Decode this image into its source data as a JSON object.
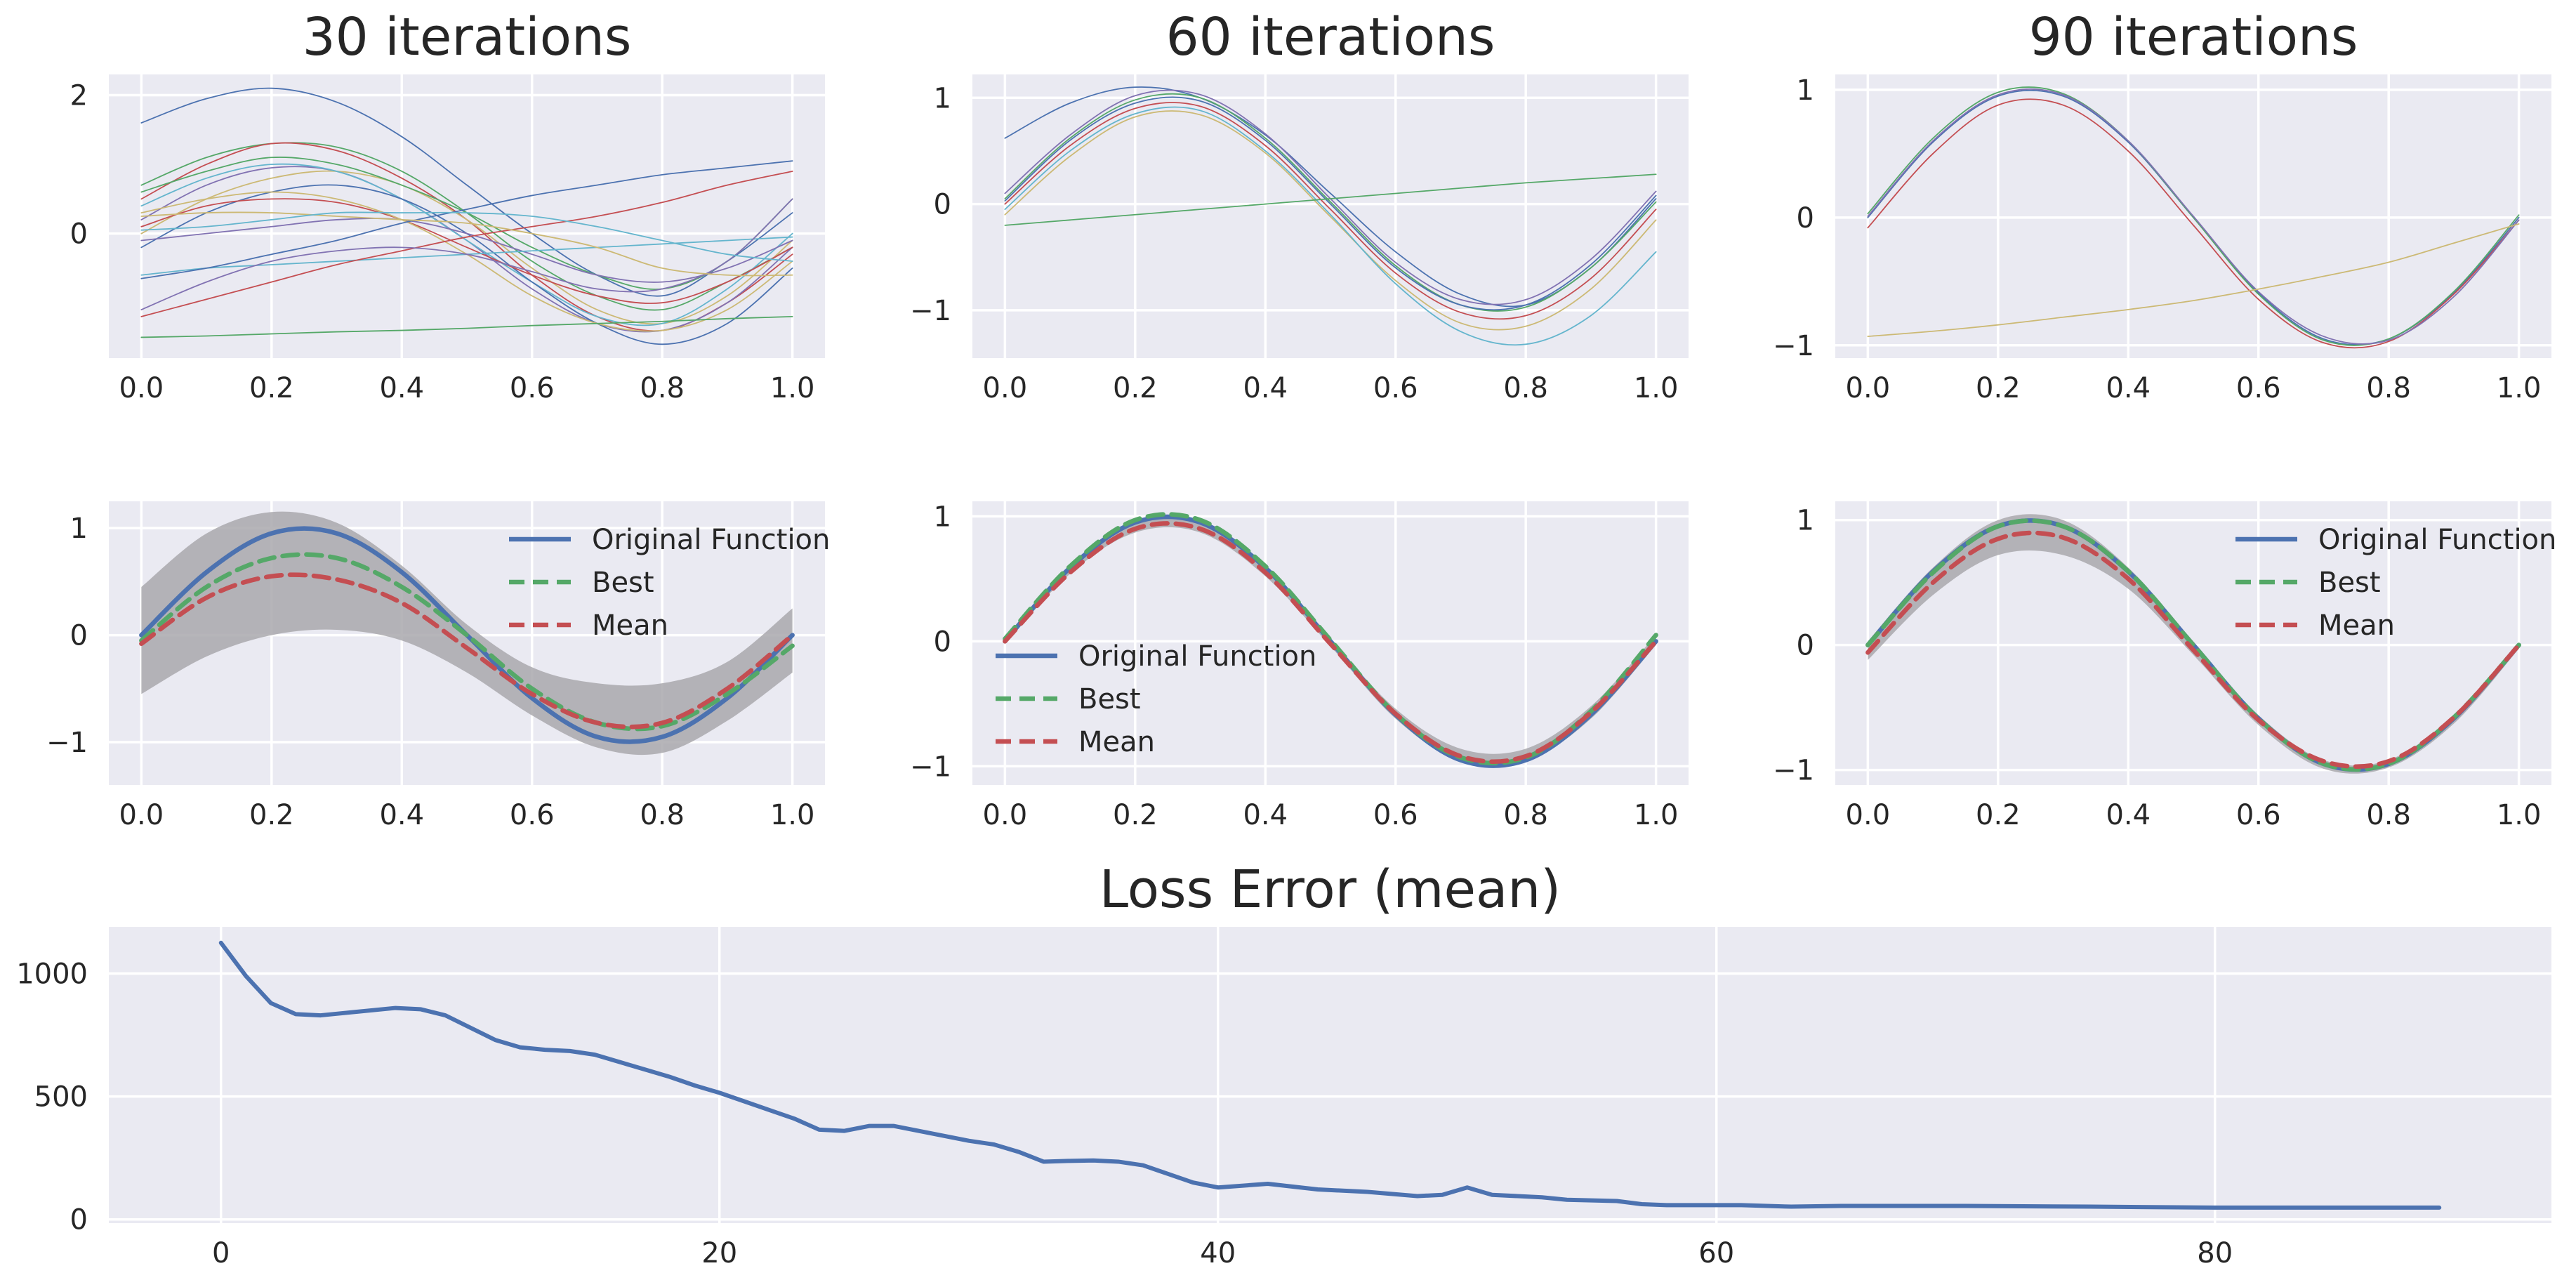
{
  "figure": {
    "background": "#ffffff",
    "panel_color": "#eaeaf2",
    "grid": true
  },
  "colors": {
    "original": "#4c72b0",
    "best": "#55a868",
    "mean": "#c44e52",
    "band": "#a9a8ad",
    "cycle": [
      "#4c72b0",
      "#55a868",
      "#c44e52",
      "#8172b2",
      "#ccb974",
      "#64b5cd"
    ]
  },
  "chart_data": [
    {
      "id": "pop30",
      "type": "line",
      "title": "30 iterations",
      "xlim": [
        -0.05,
        1.05
      ],
      "ylim": [
        -1.8,
        2.3
      ],
      "xticks": [
        "0.0",
        "0.2",
        "0.4",
        "0.6",
        "0.8",
        "1.0"
      ],
      "yticks": [
        "0",
        "2"
      ],
      "x": [
        0,
        0.1,
        0.2,
        0.3,
        0.4,
        0.5,
        0.6,
        0.7,
        0.8,
        0.9,
        1.0
      ],
      "series": [
        {
          "values": [
            1.6,
            1.95,
            2.1,
            1.9,
            1.4,
            0.7,
            0.0,
            -0.6,
            -0.9,
            -0.4,
            0.3
          ]
        },
        {
          "values": [
            0.7,
            1.1,
            1.3,
            1.25,
            0.9,
            0.3,
            -0.4,
            -0.9,
            -1.1,
            -0.7,
            -0.2
          ]
        },
        {
          "values": [
            0.5,
            1.0,
            1.3,
            1.2,
            0.8,
            0.2,
            -0.6,
            -1.2,
            -1.4,
            -1.0,
            -0.3
          ]
        },
        {
          "values": [
            0.2,
            0.7,
            0.95,
            0.9,
            0.5,
            -0.1,
            -0.8,
            -1.3,
            -1.4,
            -1.0,
            -0.2
          ]
        },
        {
          "values": [
            0.0,
            0.5,
            0.8,
            0.9,
            0.7,
            0.2,
            -0.5,
            -1.1,
            -1.3,
            -0.9,
            -0.1
          ]
        },
        {
          "values": [
            0.4,
            0.8,
            1.0,
            0.9,
            0.5,
            -0.1,
            -0.7,
            -1.2,
            -1.3,
            -0.8,
            0.0
          ]
        },
        {
          "values": [
            -0.2,
            0.3,
            0.6,
            0.7,
            0.5,
            0.0,
            -0.7,
            -1.3,
            -1.6,
            -1.3,
            -0.5
          ]
        },
        {
          "values": [
            0.6,
            0.9,
            1.1,
            1.0,
            0.7,
            0.3,
            -0.2,
            -0.6,
            -0.8,
            -0.4,
            0.5
          ]
        },
        {
          "values": [
            0.1,
            0.4,
            0.5,
            0.45,
            0.2,
            -0.2,
            -0.6,
            -0.9,
            -1.0,
            -0.7,
            -0.2
          ]
        },
        {
          "values": [
            -0.1,
            0.0,
            0.1,
            0.2,
            0.2,
            0.0,
            -0.3,
            -0.6,
            -0.7,
            -0.5,
            -0.1
          ]
        },
        {
          "values": [
            0.3,
            0.5,
            0.6,
            0.5,
            0.2,
            -0.3,
            -0.9,
            -1.3,
            -1.4,
            -1.1,
            -0.4
          ]
        },
        {
          "values": [
            -0.6,
            -0.5,
            -0.45,
            -0.4,
            -0.35,
            -0.3,
            -0.25,
            -0.2,
            -0.15,
            -0.1,
            -0.05
          ]
        },
        {
          "values": [
            -0.65,
            -0.5,
            -0.3,
            -0.1,
            0.15,
            0.35,
            0.55,
            0.7,
            0.85,
            0.95,
            1.05
          ]
        },
        {
          "values": [
            -1.5,
            -1.48,
            -1.45,
            -1.42,
            -1.4,
            -1.37,
            -1.33,
            -1.3,
            -1.27,
            -1.23,
            -1.2
          ]
        },
        {
          "values": [
            -1.2,
            -0.95,
            -0.7,
            -0.45,
            -0.25,
            -0.05,
            0.1,
            0.25,
            0.45,
            0.7,
            0.9
          ]
        },
        {
          "values": [
            -1.1,
            -0.7,
            -0.4,
            -0.25,
            -0.2,
            -0.3,
            -0.55,
            -0.8,
            -0.8,
            -0.4,
            0.5
          ]
        },
        {
          "values": [
            0.25,
            0.3,
            0.3,
            0.25,
            0.2,
            0.15,
            0.0,
            -0.2,
            -0.5,
            -0.6,
            -0.6
          ]
        },
        {
          "values": [
            0.05,
            0.1,
            0.2,
            0.3,
            0.3,
            0.3,
            0.25,
            0.1,
            -0.1,
            -0.3,
            -0.4
          ]
        }
      ]
    },
    {
      "id": "pop60",
      "type": "line",
      "title": "60 iterations",
      "xlim": [
        -0.05,
        1.05
      ],
      "ylim": [
        -1.45,
        1.22
      ],
      "xticks": [
        "0.0",
        "0.2",
        "0.4",
        "0.6",
        "0.8",
        "1.0"
      ],
      "yticks": [
        "−1",
        "0",
        "1"
      ],
      "x": [
        0,
        0.1,
        0.2,
        0.3,
        0.4,
        0.5,
        0.6,
        0.7,
        0.8,
        0.9,
        1.0
      ],
      "series": [
        {
          "values": [
            0.62,
            0.95,
            1.1,
            1.0,
            0.65,
            0.1,
            -0.45,
            -0.85,
            -0.95,
            -0.6,
            0.05
          ]
        },
        {
          "values": [
            0.05,
            0.62,
            0.98,
            1.0,
            0.62,
            0.02,
            -0.58,
            -0.95,
            -0.97,
            -0.6,
            0.02
          ]
        },
        {
          "values": [
            0.0,
            0.55,
            0.9,
            0.92,
            0.55,
            -0.05,
            -0.65,
            -1.02,
            -1.05,
            -0.7,
            -0.05
          ]
        },
        {
          "values": [
            0.1,
            0.65,
            1.02,
            1.03,
            0.66,
            0.05,
            -0.55,
            -0.9,
            -0.9,
            -0.52,
            0.12
          ]
        },
        {
          "values": [
            -0.1,
            0.45,
            0.82,
            0.84,
            0.48,
            -0.12,
            -0.72,
            -1.12,
            -1.15,
            -0.8,
            -0.15
          ]
        },
        {
          "values": [
            -0.05,
            0.5,
            0.85,
            0.88,
            0.5,
            -0.1,
            -0.75,
            -1.2,
            -1.32,
            -1.05,
            -0.45
          ]
        },
        {
          "values": [
            0.03,
            0.6,
            0.95,
            0.97,
            0.6,
            0.0,
            -0.6,
            -0.95,
            -0.95,
            -0.57,
            0.08
          ]
        },
        {
          "values": [
            -0.2,
            -0.15,
            -0.1,
            -0.05,
            0.0,
            0.05,
            0.1,
            0.15,
            0.2,
            0.24,
            0.28
          ]
        }
      ]
    },
    {
      "id": "pop90",
      "type": "line",
      "title": "90 iterations",
      "xlim": [
        -0.05,
        1.05
      ],
      "ylim": [
        -1.1,
        1.12
      ],
      "xticks": [
        "0.0",
        "0.2",
        "0.4",
        "0.6",
        "0.8",
        "1.0"
      ],
      "yticks": [
        "−1",
        "0",
        "1"
      ],
      "x": [
        0,
        0.1,
        0.2,
        0.3,
        0.4,
        0.5,
        0.6,
        0.7,
        0.8,
        0.9,
        1.0
      ],
      "series": [
        {
          "values": [
            0.0,
            0.59,
            0.95,
            0.95,
            0.59,
            0.0,
            -0.59,
            -0.95,
            -0.95,
            -0.59,
            0.0
          ]
        },
        {
          "values": [
            0.03,
            0.62,
            0.98,
            0.97,
            0.6,
            0.0,
            -0.6,
            -0.96,
            -0.95,
            -0.58,
            0.02
          ]
        },
        {
          "values": [
            -0.08,
            0.5,
            0.88,
            0.88,
            0.52,
            -0.06,
            -0.64,
            -0.98,
            -0.97,
            -0.6,
            -0.02
          ]
        },
        {
          "values": [
            0.01,
            0.6,
            0.96,
            0.96,
            0.6,
            0.01,
            -0.58,
            -0.93,
            -0.96,
            -0.62,
            -0.02
          ]
        },
        {
          "values": [
            -0.93,
            -0.89,
            -0.84,
            -0.78,
            -0.72,
            -0.65,
            -0.56,
            -0.46,
            -0.35,
            -0.2,
            -0.05
          ]
        }
      ]
    },
    {
      "id": "summary30",
      "type": "line",
      "xlim": [
        -0.05,
        1.05
      ],
      "ylim": [
        -1.4,
        1.25
      ],
      "xticks": [
        "0.0",
        "0.2",
        "0.4",
        "0.6",
        "0.8",
        "1.0"
      ],
      "yticks": [
        "−1",
        "0",
        "1"
      ],
      "legend_position": "upper-right",
      "x": [
        0,
        0.1,
        0.2,
        0.3,
        0.4,
        0.5,
        0.6,
        0.7,
        0.8,
        0.9,
        1.0
      ],
      "band": {
        "upper": [
          0.45,
          0.95,
          1.15,
          1.05,
          0.65,
          0.1,
          -0.3,
          -0.45,
          -0.45,
          -0.25,
          0.25
        ],
        "lower": [
          -0.55,
          -0.2,
          0.0,
          0.05,
          -0.05,
          -0.35,
          -0.75,
          -1.05,
          -1.1,
          -0.8,
          -0.35
        ]
      },
      "series": [
        {
          "name": "Original Function",
          "style": "solid",
          "color_key": "original",
          "values": [
            0.0,
            0.588,
            0.951,
            0.951,
            0.588,
            0.0,
            -0.588,
            -0.951,
            -0.951,
            -0.588,
            0.0
          ]
        },
        {
          "name": "Best",
          "style": "dashed",
          "color_key": "best",
          "values": [
            -0.05,
            0.45,
            0.72,
            0.72,
            0.45,
            0.0,
            -0.5,
            -0.82,
            -0.85,
            -0.55,
            -0.1
          ]
        },
        {
          "name": "Mean",
          "style": "dashed",
          "color_key": "mean",
          "values": [
            -0.08,
            0.35,
            0.55,
            0.52,
            0.3,
            -0.12,
            -0.55,
            -0.82,
            -0.82,
            -0.5,
            0.0
          ]
        }
      ]
    },
    {
      "id": "summary60",
      "type": "line",
      "xlim": [
        -0.05,
        1.05
      ],
      "ylim": [
        -1.15,
        1.12
      ],
      "xticks": [
        "0.0",
        "0.2",
        "0.4",
        "0.6",
        "0.8",
        "1.0"
      ],
      "yticks": [
        "−1",
        "0",
        "1"
      ],
      "legend_position": "lower-left",
      "x": [
        0,
        0.1,
        0.2,
        0.3,
        0.4,
        0.5,
        0.6,
        0.7,
        0.8,
        0.9,
        1.0
      ],
      "band": {
        "upper": [
          0.03,
          0.6,
          0.96,
          0.96,
          0.6,
          0.02,
          -0.54,
          -0.86,
          -0.86,
          -0.52,
          0.05
        ],
        "lower": [
          -0.02,
          0.54,
          0.87,
          0.87,
          0.52,
          -0.04,
          -0.62,
          -0.96,
          -0.96,
          -0.62,
          -0.03
        ]
      },
      "series": [
        {
          "name": "Original Function",
          "style": "solid",
          "color_key": "original",
          "values": [
            0.0,
            0.588,
            0.951,
            0.951,
            0.588,
            0.0,
            -0.588,
            -0.951,
            -0.951,
            -0.588,
            0.0
          ]
        },
        {
          "name": "Best",
          "style": "dashed",
          "color_key": "best",
          "values": [
            0.02,
            0.6,
            0.97,
            0.97,
            0.6,
            0.01,
            -0.58,
            -0.93,
            -0.93,
            -0.56,
            0.05
          ]
        },
        {
          "name": "Mean",
          "style": "dashed",
          "color_key": "mean",
          "values": [
            0.0,
            0.55,
            0.9,
            0.9,
            0.55,
            -0.02,
            -0.58,
            -0.92,
            -0.92,
            -0.57,
            0.0
          ]
        }
      ]
    },
    {
      "id": "summary90",
      "type": "line",
      "xlim": [
        -0.05,
        1.05
      ],
      "ylim": [
        -1.12,
        1.15
      ],
      "xticks": [
        "0.0",
        "0.2",
        "0.4",
        "0.6",
        "0.8",
        "1.0"
      ],
      "yticks": [
        "−1",
        "0",
        "1"
      ],
      "legend_position": "upper-right",
      "x": [
        0,
        0.1,
        0.2,
        0.3,
        0.4,
        0.5,
        0.6,
        0.7,
        0.8,
        0.9,
        1.0
      ],
      "band": {
        "upper": [
          0.03,
          0.62,
          1.0,
          1.0,
          0.62,
          0.03,
          -0.56,
          -0.92,
          -0.92,
          -0.56,
          0.02
        ],
        "lower": [
          -0.12,
          0.4,
          0.72,
          0.72,
          0.45,
          -0.08,
          -0.64,
          -0.99,
          -0.98,
          -0.63,
          -0.03
        ]
      },
      "series": [
        {
          "name": "Original Function",
          "style": "solid",
          "color_key": "original",
          "values": [
            0.0,
            0.588,
            0.951,
            0.951,
            0.588,
            0.0,
            -0.588,
            -0.951,
            -0.951,
            -0.588,
            0.0
          ]
        },
        {
          "name": "Best",
          "style": "dashed",
          "color_key": "best",
          "values": [
            0.0,
            0.58,
            0.95,
            0.95,
            0.59,
            0.0,
            -0.59,
            -0.95,
            -0.95,
            -0.58,
            0.0
          ]
        },
        {
          "name": "Mean",
          "style": "dashed",
          "color_key": "mean",
          "values": [
            -0.06,
            0.5,
            0.85,
            0.86,
            0.53,
            -0.04,
            -0.6,
            -0.93,
            -0.93,
            -0.58,
            0.0
          ]
        }
      ]
    },
    {
      "id": "loss",
      "type": "line",
      "title": "Loss Error (mean)",
      "xlim": [
        -4.5,
        93.5
      ],
      "ylim": [
        -15,
        1190
      ],
      "xticks": [
        {
          "label": "0",
          "value": 0
        },
        {
          "label": "20",
          "value": 20
        },
        {
          "label": "40",
          "value": 40
        },
        {
          "label": "60",
          "value": 60
        },
        {
          "label": "80",
          "value": 80
        }
      ],
      "yticks": [
        {
          "label": "0",
          "value": 0
        },
        {
          "label": "500",
          "value": 500
        },
        {
          "label": "1000",
          "value": 1000
        }
      ],
      "series": [
        {
          "color_key": "original",
          "x": [
            0,
            1,
            2,
            3,
            4,
            5,
            6,
            7,
            8,
            9,
            10,
            11,
            12,
            13,
            14,
            15,
            16,
            17,
            18,
            19,
            20,
            21,
            22,
            23,
            24,
            25,
            26,
            27,
            28,
            29,
            30,
            31,
            32,
            33,
            34,
            35,
            36,
            37,
            38,
            39,
            40,
            42,
            44,
            46,
            48,
            49,
            50,
            51,
            53,
            54,
            56,
            57,
            58,
            60,
            61,
            63,
            65,
            67,
            70,
            75,
            80,
            85,
            89
          ],
          "values": [
            1125,
            990,
            880,
            835,
            830,
            840,
            850,
            860,
            855,
            830,
            780,
            730,
            700,
            690,
            685,
            670,
            640,
            610,
            580,
            545,
            515,
            480,
            445,
            410,
            365,
            360,
            380,
            380,
            360,
            340,
            320,
            305,
            275,
            235,
            238,
            240,
            235,
            220,
            185,
            150,
            130,
            145,
            122,
            112,
            95,
            100,
            130,
            100,
            90,
            80,
            75,
            62,
            58,
            58,
            58,
            52,
            55,
            55,
            55,
            52,
            48,
            48,
            48
          ]
        }
      ]
    }
  ]
}
